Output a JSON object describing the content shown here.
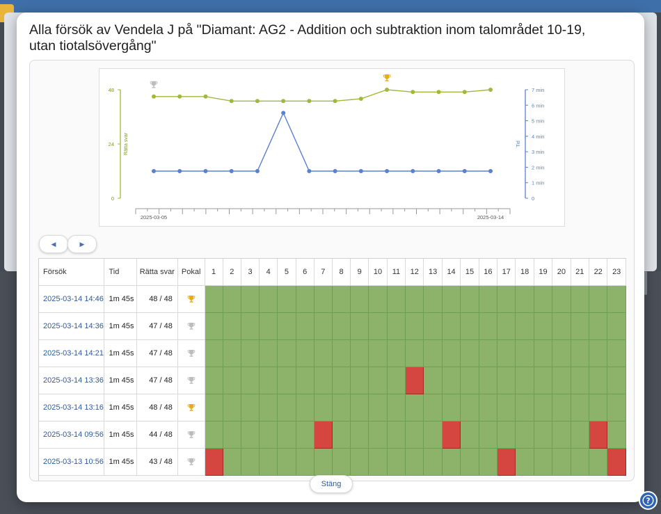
{
  "modal": {
    "title": "Alla försök av Vendela J på \"Diamant: AG2 - Addition och subtraktion inom talområdet 10-19, utan tiotalsövergång\"",
    "close_label": "Stäng"
  },
  "colors": {
    "score_series": "#9fba3a",
    "time_series": "#5b80cf",
    "correct": "#8db36b",
    "wrong": "#d4463f",
    "link": "#2c5aa0",
    "trophy_gold": "#e6ac1a",
    "trophy_silver": "#bdbdbd"
  },
  "chart_data": {
    "type": "line",
    "x_labels": [
      "2025-03-05",
      "2025-03-14"
    ],
    "ylabel_left": "Rätta svar",
    "ylabel_right": "Tid",
    "left_ticks": [
      "48",
      "24",
      "0"
    ],
    "right_ticks": [
      "7 min",
      "6 min",
      "5 min",
      "4 min",
      "3 min",
      "2 min",
      "1 min",
      "0"
    ],
    "ylim_left": [
      0,
      48
    ],
    "ylim_right_minutes": [
      0,
      7
    ],
    "series": [
      {
        "axis": "left",
        "values": [
          45,
          45,
          45,
          43,
          43,
          43,
          43,
          43,
          44,
          48,
          47,
          47,
          47,
          48
        ]
      },
      {
        "axis": "right",
        "values": [
          1.75,
          1.75,
          1.75,
          1.75,
          1.75,
          5.5,
          1.75,
          1.75,
          1.75,
          1.75,
          1.75,
          1.75,
          1.75,
          1.75
        ]
      }
    ],
    "trophy_markers": [
      {
        "index": 0,
        "type": "silver"
      },
      {
        "index": 9,
        "type": "gold"
      }
    ]
  },
  "table": {
    "headers": {
      "attempt": "Försök",
      "time": "Tid",
      "score": "Rätta svar",
      "trophy": "Pokal"
    },
    "question_numbers": [
      "1",
      "2",
      "3",
      "4",
      "5",
      "6",
      "7",
      "8",
      "9",
      "10",
      "11",
      "12",
      "13",
      "14",
      "15",
      "16",
      "17",
      "18",
      "19",
      "20",
      "21",
      "22",
      "23"
    ],
    "rows": [
      {
        "date": "2025-03-14 14:46",
        "time": "1m 45s",
        "score": "48 / 48",
        "trophy": "gold",
        "wrong": []
      },
      {
        "date": "2025-03-14 14:36",
        "time": "1m 45s",
        "score": "47 / 48",
        "trophy": "silver",
        "wrong": []
      },
      {
        "date": "2025-03-14 14:21",
        "time": "1m 45s",
        "score": "47 / 48",
        "trophy": "silver",
        "wrong": []
      },
      {
        "date": "2025-03-14 13:36",
        "time": "1m 45s",
        "score": "47 / 48",
        "trophy": "silver",
        "wrong": [
          12
        ]
      },
      {
        "date": "2025-03-14 13:16",
        "time": "1m 45s",
        "score": "48 / 48",
        "trophy": "gold",
        "wrong": []
      },
      {
        "date": "2025-03-14 09:56",
        "time": "1m 45s",
        "score": "44 / 48",
        "trophy": "silver",
        "wrong": [
          7,
          14,
          22
        ]
      },
      {
        "date": "2025-03-13 10:56",
        "time": "1m 45s",
        "score": "43 / 48",
        "trophy": "silver",
        "wrong": [
          1,
          17,
          23
        ]
      }
    ]
  }
}
